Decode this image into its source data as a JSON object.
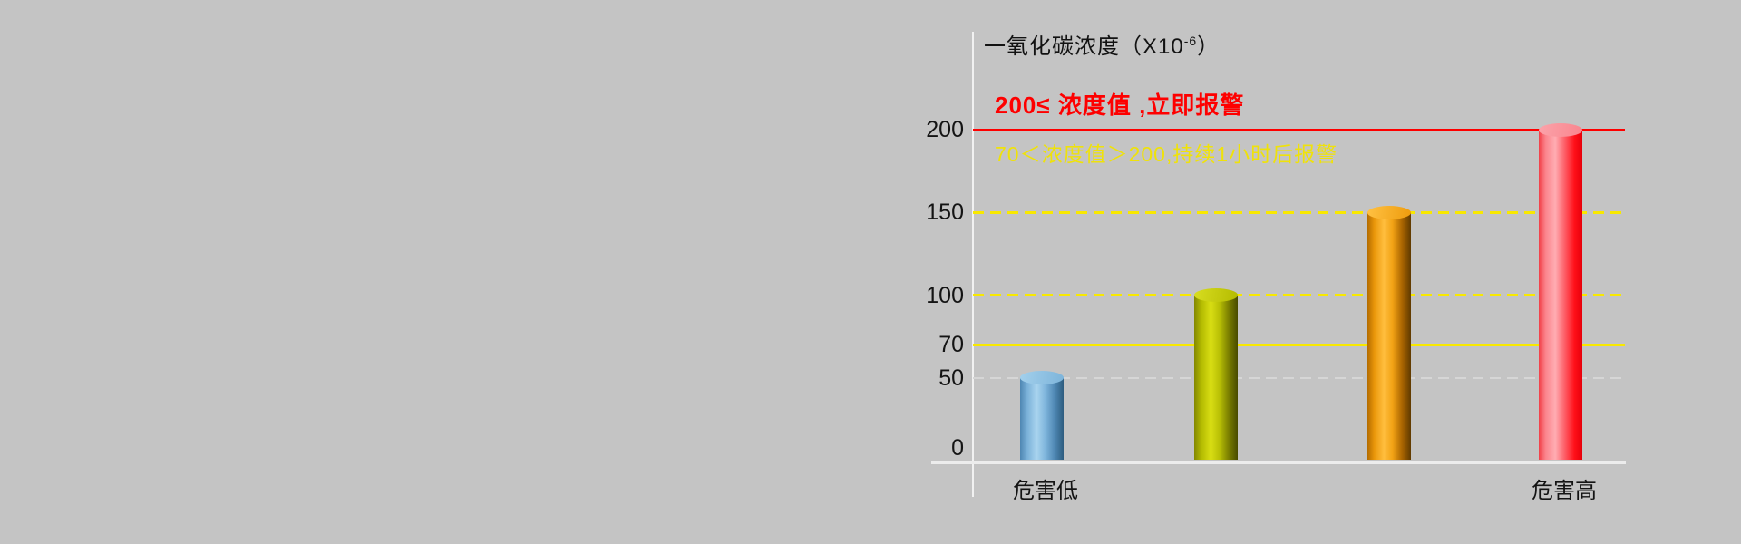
{
  "canvas": {
    "background": "#c4c4c4"
  },
  "header": {
    "title_main": "一氧化碳浓度（X10",
    "title_sup": "-6",
    "title_end": "）"
  },
  "alerts": {
    "high": {
      "text": "200≤ 浓度值 ,立即报警",
      "color": "#fe0000"
    },
    "mid": {
      "text": "70＜浓度值＞200,持续1小时后报警",
      "color": "#efe20a"
    }
  },
  "chart_data": {
    "type": "bar",
    "title": "一氧化碳浓度（X10-6）",
    "categories": [
      "危害低",
      "",
      "",
      "危害高"
    ],
    "values": [
      50,
      100,
      150,
      200
    ],
    "bar_styles": [
      "blue",
      "olive",
      "orange",
      "red"
    ],
    "bar_colors": {
      "blue": {
        "edge": "#4e86b2",
        "highlight": "#a9d4ef",
        "dark": "#2d5c7e",
        "cap": "#92c6e8"
      },
      "olive": {
        "edge": "#838700",
        "highlight": "#d9de14",
        "dark": "#474a00",
        "cap": "#ccd30a"
      },
      "orange": {
        "edge": "#b36b00",
        "highlight": "#ffbe3e",
        "dark": "#5f3a00",
        "cap": "#f8ab22"
      },
      "red": {
        "edge": "#f24048",
        "highlight": "#ffacb2",
        "dark": "#e6000a",
        "cap": "#fa9aa1"
      }
    },
    "yticks": [
      {
        "value": 200,
        "label": "200"
      },
      {
        "value": 150,
        "label": "150"
      },
      {
        "value": 100,
        "label": "100"
      },
      {
        "value": 70,
        "label": "70"
      },
      {
        "value": 50,
        "label": "50"
      },
      {
        "value": 0,
        "label": "0"
      }
    ],
    "ylim": [
      0,
      215
    ],
    "grid": false,
    "legend": null,
    "reference_lines": [
      {
        "value": 200,
        "style": "solid",
        "color": "#fe0000",
        "thickness": 2
      },
      {
        "value": 150,
        "style": "dashed",
        "color": "#f8e800",
        "thickness": 3
      },
      {
        "value": 100,
        "style": "dashed",
        "color": "#f8e800",
        "thickness": 3
      },
      {
        "value": 70,
        "style": "solid",
        "color": "#f8e800",
        "thickness": 3
      },
      {
        "value": 50,
        "style": "dashed",
        "color": "#d6d6d6",
        "thickness": 2
      }
    ],
    "annotations": [
      {
        "text": "200≤ 浓度值 ,立即报警",
        "color": "#fe0000",
        "bold": true
      },
      {
        "text": "70＜浓度值＞200,持续1小时后报警",
        "color": "#efe20a",
        "bold": false
      }
    ]
  }
}
